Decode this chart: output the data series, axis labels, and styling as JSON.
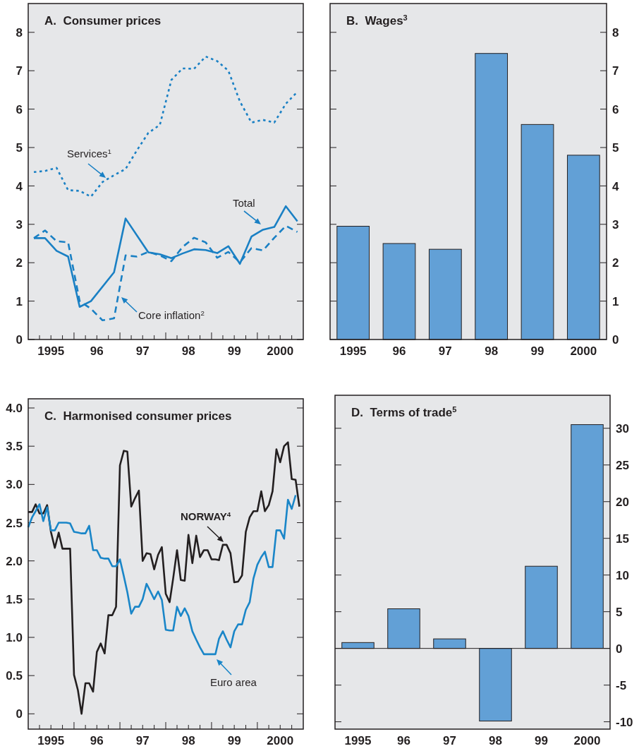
{
  "chart_data": [
    {
      "type": "line",
      "title": "A.  Consumer prices",
      "xlim": [
        "1995",
        "2001"
      ],
      "ylim": [
        0,
        8.75
      ],
      "yticks": [
        0,
        1,
        2,
        3,
        4,
        5,
        6,
        7,
        8
      ],
      "xticks": [
        {
          "value": "1995-04",
          "label": null
        },
        {
          "value": "1995-07",
          "label": "1995"
        },
        {
          "value": "1995-10",
          "label": null
        },
        {
          "value": "1996",
          "label": null
        },
        {
          "value": "1996-04",
          "label": null
        },
        {
          "value": "1996-07",
          "label": "96"
        },
        {
          "value": "1996-10",
          "label": null
        },
        {
          "value": "1997",
          "label": null
        },
        {
          "value": "1997-04",
          "label": null
        },
        {
          "value": "1997-07",
          "label": "97"
        },
        {
          "value": "1997-10",
          "label": null
        },
        {
          "value": "1998",
          "label": null
        },
        {
          "value": "1998-04",
          "label": null
        },
        {
          "value": "1998-07",
          "label": "98"
        },
        {
          "value": "1998-10",
          "label": null
        },
        {
          "value": "1999",
          "label": null
        },
        {
          "value": "1999-04",
          "label": null
        },
        {
          "value": "1999-07",
          "label": "99"
        },
        {
          "value": "1999-10",
          "label": null
        },
        {
          "value": "2000",
          "label": null
        },
        {
          "value": "2000-04",
          "label": null
        },
        {
          "value": "2000-07",
          "label": "2000"
        },
        {
          "value": "2000-10",
          "label": null
        }
      ],
      "x": [
        "1995-02-15",
        "1995-05-15",
        "1995-08-15",
        "1995-11-15",
        "1996-02-15",
        "1996-05-15",
        "1996-08-15",
        "1996-11-15",
        "1997-02-15",
        "1997-05-15",
        "1997-08-15",
        "1997-11-15",
        "1998-02-15",
        "1998-05-15",
        "1998-08-15",
        "1998-11-15",
        "1999-02-15",
        "1999-05-15",
        "1999-08-15",
        "1999-11-15",
        "2000-02-15",
        "2000-05-15",
        "2000-08-15",
        "2000-11-15"
      ],
      "series": [
        {
          "name": "Services$^{1}$",
          "color": "#1a80c4",
          "line_style": "dotted",
          "values": [
            4.36,
            4.39,
            4.47,
            3.89,
            3.87,
            3.72,
            4.1,
            4.28,
            4.44,
            4.92,
            5.38,
            5.59,
            6.76,
            7.06,
            7.05,
            7.37,
            7.25,
            7.0,
            6.2,
            5.65,
            5.72,
            5.65,
            6.14,
            6.45
          ]
        },
        {
          "name": "Core inflation$^{2}$",
          "color": "#1a80c4",
          "line_style": "dashed",
          "values": [
            2.64,
            2.84,
            2.56,
            2.53,
            1.0,
            0.8,
            0.5,
            0.55,
            2.19,
            2.16,
            2.28,
            2.19,
            2.04,
            2.41,
            2.65,
            2.53,
            2.13,
            2.28,
            2.01,
            2.38,
            2.32,
            2.65,
            2.96,
            2.8
          ]
        },
        {
          "name": "Total",
          "color": "#1a80c4",
          "line_style": "solid",
          "x": [
            "1995-02-15",
            "1995-05-15",
            "1995-08-15",
            "1995-11-15",
            "1996-02-15",
            "1996-05-15",
            "1996-11-15",
            "1997-02-15",
            "1997-08-15",
            "1997-11-15",
            "1998-02-15",
            "1998-05-15",
            "1998-08-15",
            "1998-11-15",
            "1999-02-15",
            "1999-05-15",
            "1999-08-15",
            "1999-11-15",
            "2000-02-15",
            "2000-05-15",
            "2000-08-15",
            "2000-11-15"
          ],
          "values": [
            2.64,
            2.64,
            2.31,
            2.16,
            0.85,
            1.0,
            1.75,
            3.15,
            2.27,
            2.22,
            2.12,
            2.24,
            2.35,
            2.33,
            2.25,
            2.43,
            1.97,
            2.68,
            2.86,
            2.93,
            3.47,
            3.08
          ]
        }
      ]
    },
    {
      "type": "bar",
      "title": "B.  Wages$^{3}$",
      "categories": [
        "1995",
        "96",
        "97",
        "98",
        "99",
        "2000"
      ],
      "y2lim": [
        0,
        8.75
      ],
      "y2ticks": [
        0,
        1,
        2,
        3,
        4,
        5,
        6,
        7,
        8
      ],
      "series": [
        {
          "color": "#62a0d6",
          "axis": "y2",
          "values": [
            2.95,
            2.5,
            2.35,
            7.45,
            5.6,
            4.8
          ]
        }
      ]
    },
    {
      "type": "line",
      "title": "C.  Harmonised consumer prices",
      "xlim": [
        "1995",
        "2001"
      ],
      "ylim": [
        -0.2,
        4.12
      ],
      "yticks": [
        0,
        0.5,
        {
          "value": 1,
          "label": "1.0"
        },
        1.5,
        {
          "value": 2,
          "label": "2.0"
        },
        2.5,
        {
          "value": 3,
          "label": "3.0"
        },
        3.5,
        {
          "value": 4,
          "label": "4.0"
        }
      ],
      "xticks": [
        {
          "value": "1995-04",
          "label": null
        },
        {
          "value": "1995-07",
          "label": "1995"
        },
        {
          "value": "1995-10",
          "label": null
        },
        {
          "value": "1996",
          "label": null
        },
        {
          "value": "1996-04",
          "label": null
        },
        {
          "value": "1996-07",
          "label": "96"
        },
        {
          "value": "1996-10",
          "label": null
        },
        {
          "value": "1997",
          "label": null
        },
        {
          "value": "1997-04",
          "label": null
        },
        {
          "value": "1997-07",
          "label": "97"
        },
        {
          "value": "1997-10",
          "label": null
        },
        {
          "value": "1998",
          "label": null
        },
        {
          "value": "1998-04",
          "label": null
        },
        {
          "value": "1998-07",
          "label": "98"
        },
        {
          "value": "1998-10",
          "label": null
        },
        {
          "value": "1999",
          "label": null
        },
        {
          "value": "1999-04",
          "label": null
        },
        {
          "value": "1999-07",
          "label": "99"
        },
        {
          "value": "1999-10",
          "label": null
        },
        {
          "value": "2000",
          "label": null
        },
        {
          "value": "2000-04",
          "label": null
        },
        {
          "value": "2000-07",
          "label": "2000"
        },
        {
          "value": "2000-10",
          "label": null
        }
      ],
      "x": [
        "1995-01",
        "1995-02",
        "1995-03",
        "1995-04",
        "1995-05",
        "1995-06",
        "1995-07",
        "1995-08",
        "1995-09",
        "1995-10",
        "1995-11",
        "1995-12",
        "1996-01",
        "1996-02",
        "1996-03",
        "1996-04",
        "1996-05",
        "1996-06",
        "1996-07",
        "1996-08",
        "1996-09",
        "1996-10",
        "1996-11",
        "1996-12",
        "1997-01",
        "1997-02",
        "1997-03",
        "1997-04",
        "1997-05",
        "1997-06",
        "1997-07",
        "1997-08",
        "1997-09",
        "1997-10",
        "1997-11",
        "1997-12",
        "1998-01",
        "1998-02",
        "1998-03",
        "1998-04",
        "1998-05",
        "1998-06",
        "1998-07",
        "1998-08",
        "1998-09",
        "1998-10",
        "1998-11",
        "1998-12",
        "1999-01",
        "1999-02",
        "1999-03",
        "1999-04",
        "1999-05",
        "1999-06",
        "1999-07",
        "1999-08",
        "1999-09",
        "1999-10",
        "1999-11",
        "1999-12",
        "2000-01",
        "2000-02",
        "2000-03",
        "2000-04",
        "2000-05",
        "2000-06",
        "2000-07",
        "2000-08",
        "2000-09",
        "2000-10",
        "2000-11",
        "2000-12"
      ],
      "series": [
        {
          "name": "NORWAY$^{4}$",
          "color": "#231f20",
          "values": [
            2.64,
            2.64,
            2.74,
            2.62,
            2.62,
            2.73,
            2.38,
            2.17,
            2.37,
            2.16,
            2.16,
            2.16,
            0.51,
            0.31,
            0.0,
            0.4,
            0.4,
            0.29,
            0.81,
            0.92,
            0.79,
            1.29,
            1.29,
            1.4,
            3.25,
            3.44,
            3.43,
            2.71,
            2.82,
            2.92,
            2.0,
            2.1,
            2.09,
            1.89,
            2.08,
            2.18,
            1.57,
            1.46,
            1.77,
            2.14,
            1.75,
            1.74,
            2.34,
            1.97,
            2.33,
            2.05,
            2.14,
            2.14,
            2.02,
            2.02,
            2.01,
            2.21,
            2.21,
            2.1,
            1.72,
            1.73,
            1.81,
            2.38,
            2.57,
            2.65,
            2.65,
            2.91,
            2.65,
            2.73,
            2.91,
            3.46,
            3.29,
            3.5,
            3.55,
            3.07,
            3.06,
            2.71
          ]
        },
        {
          "name": "Euro area",
          "color": "#1a86c8",
          "values": [
            2.44,
            2.57,
            2.65,
            2.74,
            2.52,
            2.7,
            2.4,
            2.4,
            2.5,
            2.5,
            2.5,
            2.49,
            2.38,
            2.37,
            2.36,
            2.36,
            2.46,
            2.14,
            2.14,
            2.04,
            2.03,
            2.03,
            1.93,
            1.93,
            2.02,
            1.8,
            1.59,
            1.31,
            1.4,
            1.4,
            1.5,
            1.7,
            1.6,
            1.5,
            1.6,
            1.49,
            1.1,
            1.09,
            1.09,
            1.4,
            1.28,
            1.38,
            1.28,
            1.08,
            0.97,
            0.87,
            0.78,
            0.78,
            0.78,
            0.78,
            0.98,
            1.08,
            0.97,
            0.87,
            1.08,
            1.17,
            1.17,
            1.36,
            1.46,
            1.77,
            1.95,
            2.05,
            2.12,
            1.92,
            1.92,
            2.4,
            2.4,
            2.29,
            2.8,
            2.68,
            2.86,
            null
          ]
        }
      ]
    },
    {
      "type": "bar",
      "title": "D.  Terms of trade$^{5}$",
      "categories": [
        "1995",
        "96",
        "97",
        "98",
        "99",
        "2000"
      ],
      "y2lim": [
        -11,
        34.5
      ],
      "y2ticks": [
        -10,
        -5,
        0,
        5,
        10,
        15,
        20,
        25,
        30
      ],
      "series": [
        {
          "color": "#62a0d6",
          "axis": "y2",
          "values": [
            0.8,
            5.4,
            1.3,
            -9.9,
            11.2,
            30.5
          ]
        }
      ]
    }
  ]
}
